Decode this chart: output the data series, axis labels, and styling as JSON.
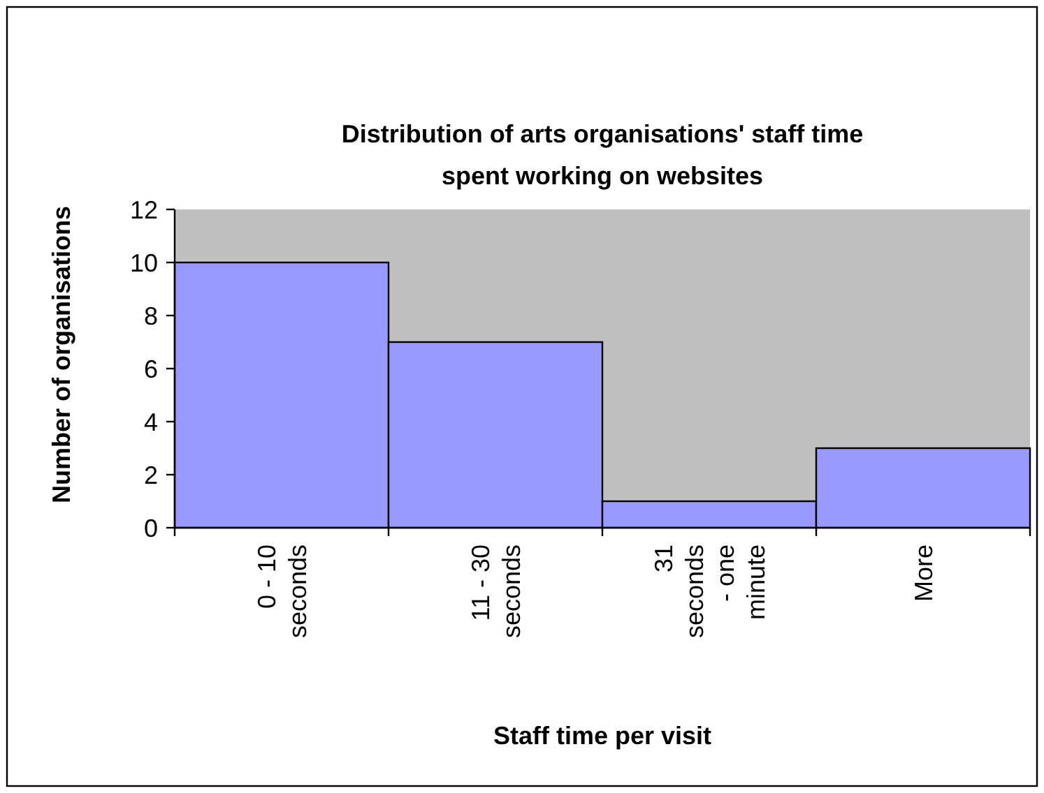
{
  "chart_data": {
    "type": "bar",
    "title": "Distribution of arts organisations' staff time spent working on websites",
    "xlabel": "Staff time per visit",
    "ylabel": "Number of organisations",
    "categories": [
      "0 - 10 seconds",
      "11 - 30 seconds",
      "31 seconds - one minute",
      "More"
    ],
    "values": [
      10,
      7,
      1,
      3
    ],
    "color": "#9999ff",
    "ylim": [
      0,
      12
    ],
    "yticks": [
      0,
      2,
      4,
      6,
      8,
      10,
      12
    ],
    "grid": false
  }
}
